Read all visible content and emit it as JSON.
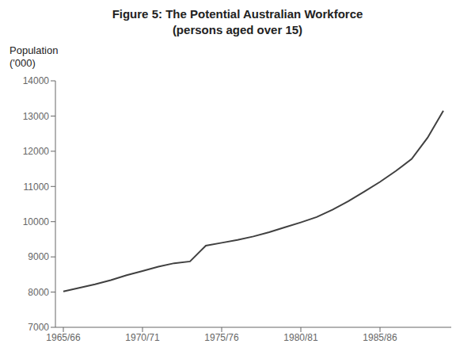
{
  "chart_data": {
    "type": "line",
    "title": "Figure 5: The Potential Australian Workforce",
    "subtitle": "(persons aged over 15)",
    "y_label": [
      "Population",
      "('000)"
    ],
    "x": [
      0,
      1,
      2,
      3,
      4,
      5,
      6,
      7,
      8,
      9,
      10,
      11,
      12,
      13,
      14,
      15,
      16,
      17,
      18,
      19,
      20,
      21,
      22,
      23,
      24
    ],
    "values": [
      8020,
      8120,
      8220,
      8340,
      8480,
      8600,
      8720,
      8820,
      8870,
      9320,
      9400,
      9480,
      9580,
      9700,
      9840,
      9980,
      10130,
      10340,
      10580,
      10850,
      11130,
      11440,
      11780,
      12380,
      13150
    ],
    "color": "#404040",
    "xlim": [
      -0.5,
      24.5
    ],
    "xticks": [
      {
        "value": 0,
        "label": "1965/66"
      },
      {
        "value": 5,
        "label": "1970/71"
      },
      {
        "value": 10,
        "label": "1975/76"
      },
      {
        "value": 15,
        "label": "1980/81"
      },
      {
        "value": 20,
        "label": "1985/86"
      }
    ],
    "ylim": [
      7000,
      14000
    ],
    "yticks": [
      7000,
      8000,
      9000,
      10000,
      11000,
      12000,
      13000,
      14000
    ],
    "grid": false
  }
}
